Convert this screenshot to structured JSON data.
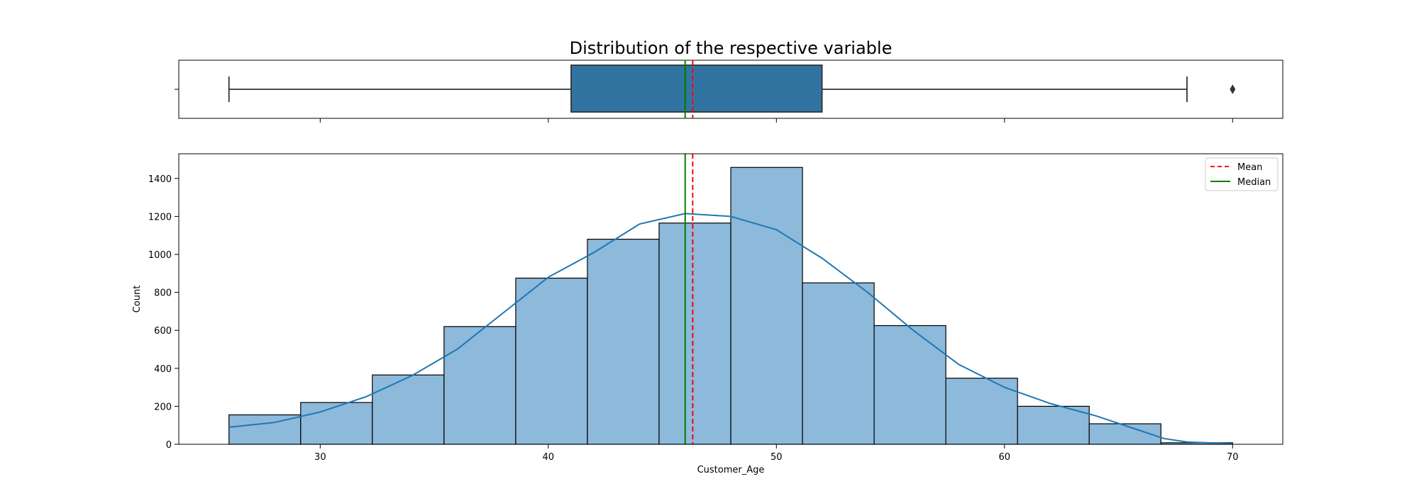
{
  "chart_data": {
    "title": "Distribution of the respective variable",
    "xlabel": "Customer_Age",
    "ylabel": "Count",
    "xlim": [
      23.8,
      72.2
    ],
    "x_ticks": [
      30,
      40,
      50,
      60,
      70
    ],
    "x_tick_labels": [
      "30",
      "40",
      "50",
      "60",
      "70"
    ],
    "grid": false,
    "colors": {
      "hist_fill": "#8db9da",
      "box_fill": "#3274a1",
      "kde_line": "#1f77b4",
      "mean_line": "#ff0000",
      "median_line": "#008000",
      "edge": "#000000"
    },
    "boxplot": {
      "type": "box",
      "whisker_low": 26,
      "q1": 41,
      "median": 46,
      "q3": 52,
      "whisker_high": 68,
      "outliers": [
        70
      ],
      "mean": 46.33
    },
    "histogram": {
      "type": "bar",
      "ylim": [
        0,
        1530
      ],
      "y_ticks": [
        0,
        200,
        400,
        600,
        800,
        1000,
        1200,
        1400
      ],
      "y_tick_labels": [
        "0",
        "200",
        "400",
        "600",
        "800",
        "1000",
        "1200",
        "1400"
      ],
      "bin_edges": [
        26,
        29.1429,
        32.2857,
        35.4286,
        38.5714,
        41.7143,
        44.8571,
        48,
        51.1429,
        54.2857,
        57.4286,
        60.5714,
        63.7143,
        66.8571,
        70
      ],
      "counts": [
        155,
        220,
        365,
        620,
        875,
        1080,
        1165,
        1458,
        850,
        625,
        348,
        200,
        108,
        8
      ],
      "kde": {
        "x": [
          26,
          28,
          30,
          32,
          34,
          36,
          38,
          40,
          42,
          44,
          46,
          48,
          50,
          52,
          54,
          56,
          58,
          60,
          62,
          64,
          66,
          67,
          68,
          70
        ],
        "y": [
          90,
          115,
          170,
          250,
          360,
          500,
          690,
          880,
          1010,
          1160,
          1215,
          1200,
          1130,
          980,
          800,
          600,
          420,
          300,
          215,
          150,
          70,
          30,
          12,
          3
        ]
      },
      "mean": 46.33,
      "median": 46,
      "legend": {
        "placement": "top-right",
        "entries": [
          {
            "label": "Mean",
            "style": "dashed",
            "color": "#ff0000"
          },
          {
            "label": "Median",
            "style": "solid",
            "color": "#008000"
          }
        ]
      }
    }
  }
}
